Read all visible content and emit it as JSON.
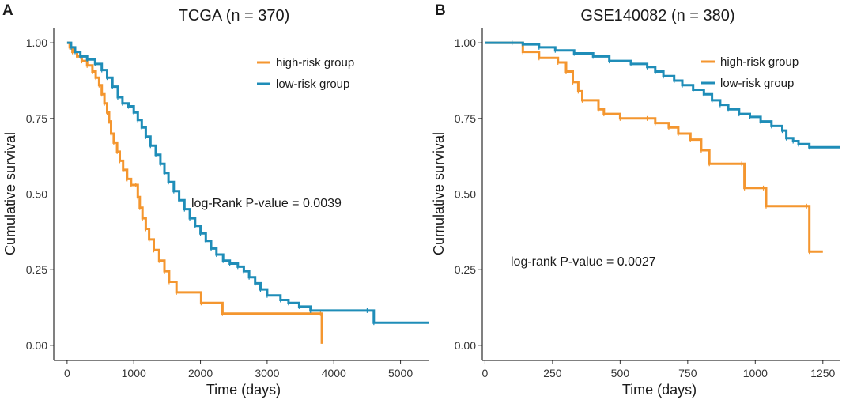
{
  "colors": {
    "high": "#F4962F",
    "low": "#1F8DB8"
  },
  "chart_data": [
    {
      "type": "line",
      "panel_label": "A",
      "title": "TCGA (n = 370)",
      "xlabel": "Time (days)",
      "ylabel": "Cumulative survival",
      "xlim": [
        -200,
        5420
      ],
      "ylim": [
        -0.05,
        1.05
      ],
      "xticks": [
        0,
        1000,
        2000,
        3000,
        4000,
        5000
      ],
      "xtick_labels": [
        "0",
        "1000",
        "2000",
        "3000",
        "4000",
        "5000"
      ],
      "yticks": [
        0,
        0.25,
        0.5,
        0.75,
        1
      ],
      "ytick_labels": [
        "0.00",
        "0.25",
        "0.50",
        "0.75",
        "1.00"
      ],
      "legend": [
        "high-risk group",
        "low-risk group"
      ],
      "annotation": "log-Rank P-value = 0.0039",
      "series": [
        {
          "name": "high-risk group",
          "color_key": "high",
          "points": [
            [
              0,
              1
            ],
            [
              40,
              0.985
            ],
            [
              80,
              0.97
            ],
            [
              150,
              0.955
            ],
            [
              220,
              0.94
            ],
            [
              300,
              0.925
            ],
            [
              380,
              0.905
            ],
            [
              430,
              0.885
            ],
            [
              480,
              0.86
            ],
            [
              520,
              0.83
            ],
            [
              560,
              0.8
            ],
            [
              600,
              0.77
            ],
            [
              630,
              0.74
            ],
            [
              660,
              0.7
            ],
            [
              700,
              0.67
            ],
            [
              750,
              0.64
            ],
            [
              790,
              0.61
            ],
            [
              840,
              0.58
            ],
            [
              900,
              0.55
            ],
            [
              960,
              0.53
            ],
            [
              1030,
              0.53
            ],
            [
              1060,
              0.49
            ],
            [
              1090,
              0.455
            ],
            [
              1130,
              0.42
            ],
            [
              1180,
              0.385
            ],
            [
              1230,
              0.35
            ],
            [
              1300,
              0.315
            ],
            [
              1380,
              0.28
            ],
            [
              1460,
              0.245
            ],
            [
              1530,
              0.21
            ],
            [
              1640,
              0.175
            ],
            [
              2010,
              0.14
            ],
            [
              2330,
              0.105
            ],
            [
              3800,
              0.105
            ],
            [
              3820,
              0.005
            ]
          ]
        },
        {
          "name": "low-risk group",
          "color_key": "low",
          "points": [
            [
              0,
              1
            ],
            [
              60,
              0.985
            ],
            [
              120,
              0.97
            ],
            [
              200,
              0.955
            ],
            [
              300,
              0.945
            ],
            [
              420,
              0.93
            ],
            [
              520,
              0.91
            ],
            [
              600,
              0.885
            ],
            [
              680,
              0.855
            ],
            [
              760,
              0.82
            ],
            [
              830,
              0.8
            ],
            [
              920,
              0.79
            ],
            [
              1000,
              0.77
            ],
            [
              1060,
              0.745
            ],
            [
              1120,
              0.72
            ],
            [
              1180,
              0.69
            ],
            [
              1250,
              0.66
            ],
            [
              1330,
              0.63
            ],
            [
              1400,
              0.6
            ],
            [
              1460,
              0.57
            ],
            [
              1520,
              0.54
            ],
            [
              1600,
              0.51
            ],
            [
              1680,
              0.48
            ],
            [
              1760,
              0.45
            ],
            [
              1840,
              0.42
            ],
            [
              1920,
              0.395
            ],
            [
              2000,
              0.37
            ],
            [
              2080,
              0.345
            ],
            [
              2160,
              0.32
            ],
            [
              2240,
              0.3
            ],
            [
              2340,
              0.28
            ],
            [
              2440,
              0.27
            ],
            [
              2560,
              0.26
            ],
            [
              2650,
              0.245
            ],
            [
              2730,
              0.225
            ],
            [
              2820,
              0.205
            ],
            [
              2900,
              0.185
            ],
            [
              3000,
              0.165
            ],
            [
              3200,
              0.15
            ],
            [
              3320,
              0.14
            ],
            [
              3480,
              0.128
            ],
            [
              3650,
              0.115
            ],
            [
              4500,
              0.115
            ],
            [
              4600,
              0.075
            ],
            [
              5420,
              0.075
            ]
          ]
        }
      ]
    },
    {
      "type": "line",
      "panel_label": "B",
      "title": "GSE140082 (n = 380)",
      "xlabel": "Time (days)",
      "ylabel": "Cumulative survival",
      "xlim": [
        -10,
        1315
      ],
      "ylim": [
        -0.05,
        1.05
      ],
      "xticks": [
        0,
        250,
        500,
        750,
        1000,
        1250
      ],
      "xtick_labels": [
        "0",
        "250",
        "500",
        "750",
        "1000",
        "1250"
      ],
      "yticks": [
        0,
        0.25,
        0.5,
        0.75,
        1
      ],
      "ytick_labels": [
        "0.00",
        "0.25",
        "0.50",
        "0.75",
        "1.00"
      ],
      "legend": [
        "high-risk group",
        "low-risk group"
      ],
      "annotation": "log-rank P-value = 0.0027",
      "series": [
        {
          "name": "high-risk group",
          "color_key": "high",
          "points": [
            [
              0,
              1
            ],
            [
              140,
              0.97
            ],
            [
              200,
              0.95
            ],
            [
              270,
              0.935
            ],
            [
              300,
              0.905
            ],
            [
              325,
              0.87
            ],
            [
              345,
              0.84
            ],
            [
              360,
              0.81
            ],
            [
              420,
              0.78
            ],
            [
              440,
              0.765
            ],
            [
              500,
              0.75
            ],
            [
              600,
              0.75
            ],
            [
              630,
              0.735
            ],
            [
              680,
              0.72
            ],
            [
              715,
              0.7
            ],
            [
              760,
              0.68
            ],
            [
              800,
              0.645
            ],
            [
              830,
              0.6
            ],
            [
              950,
              0.6
            ],
            [
              960,
              0.52
            ],
            [
              1030,
              0.52
            ],
            [
              1040,
              0.46
            ],
            [
              1190,
              0.46
            ],
            [
              1200,
              0.31
            ],
            [
              1250,
              0.31
            ]
          ]
        },
        {
          "name": "low-risk group",
          "color_key": "low",
          "points": [
            [
              0,
              1
            ],
            [
              100,
              1
            ],
            [
              140,
              0.995
            ],
            [
              200,
              0.985
            ],
            [
              260,
              0.975
            ],
            [
              330,
              0.965
            ],
            [
              400,
              0.955
            ],
            [
              460,
              0.94
            ],
            [
              540,
              0.93
            ],
            [
              600,
              0.92
            ],
            [
              630,
              0.905
            ],
            [
              660,
              0.89
            ],
            [
              700,
              0.875
            ],
            [
              730,
              0.86
            ],
            [
              770,
              0.845
            ],
            [
              810,
              0.83
            ],
            [
              840,
              0.81
            ],
            [
              870,
              0.795
            ],
            [
              900,
              0.78
            ],
            [
              940,
              0.765
            ],
            [
              980,
              0.755
            ],
            [
              1020,
              0.74
            ],
            [
              1060,
              0.725
            ],
            [
              1100,
              0.71
            ],
            [
              1115,
              0.685
            ],
            [
              1140,
              0.675
            ],
            [
              1160,
              0.665
            ],
            [
              1200,
              0.655
            ],
            [
              1315,
              0.655
            ]
          ]
        }
      ]
    }
  ]
}
